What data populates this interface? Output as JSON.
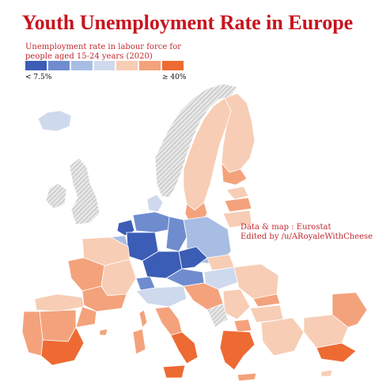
{
  "title": "Youth Unemployment Rate in Europe",
  "subtitle": "Unemployment rate in labour force for people aged 15-24 years (2020)",
  "legend": {
    "low_label": "< 7.5%",
    "high_label": "≥ 40%",
    "colors": [
      "#3b5db5",
      "#6f8ccf",
      "#a8bde3",
      "#cfd9ee",
      "#f7cdb5",
      "#f4a27c",
      "#ee6a33"
    ]
  },
  "credits": {
    "line1": "Data & map : Eurostat",
    "line2": "Edited by /u/ARoyaleWithCheese"
  },
  "colors": {
    "title": "#c8141e",
    "no_data": "#d9d9d9",
    "border": "#ffffff"
  }
}
